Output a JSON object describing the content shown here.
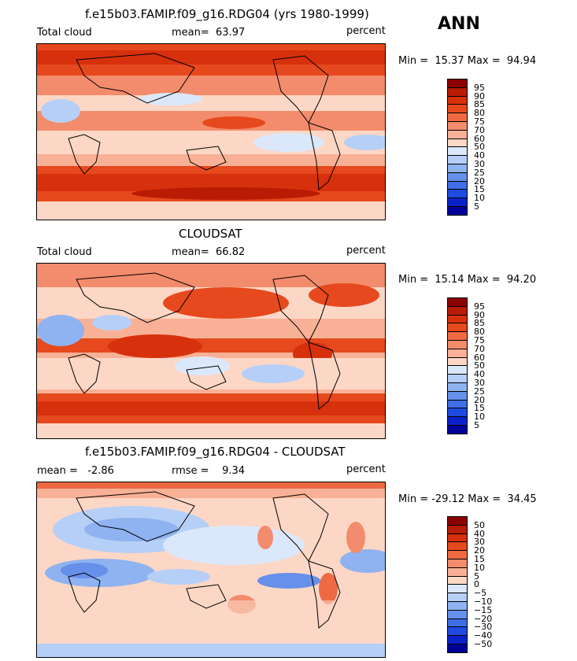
{
  "season": "ANN",
  "panels": [
    {
      "title": "f.e15b03.FAMIP.f09_g16.RDG04 (yrs 1980-1999)",
      "left_label": "Total cloud",
      "stat1": "mean=  63.97",
      "units": "percent",
      "minmax": "Min =  15.37 Max =  94.94"
    },
    {
      "title": "CLOUDSAT",
      "left_label": "Total cloud",
      "stat1": "mean=  66.82",
      "units": "percent",
      "minmax": "Min =  15.14 Max =  94.20"
    },
    {
      "title": "f.e15b03.FAMIP.f09_g16.RDG04 - CLOUDSAT",
      "left_label": "mean =   -2.86",
      "stat1": "rmse =    9.34",
      "units": "percent",
      "minmax": "Min = -29.12 Max =  34.45"
    }
  ],
  "colorbars": {
    "cloud": {
      "labels": [
        "95",
        "90",
        "85",
        "80",
        "75",
        "70",
        "60",
        "50",
        "40",
        "30",
        "25",
        "20",
        "15",
        "10",
        "5"
      ],
      "colors": [
        "#8b0000",
        "#b81c05",
        "#d7300c",
        "#e6491d",
        "#ef6a43",
        "#f38c6c",
        "#f8b196",
        "#fcd7c6",
        "#dbe8fb",
        "#b6cff7",
        "#8fb2f0",
        "#6690ea",
        "#3f6ee6",
        "#1f4be0",
        "#0a23c8",
        "#000099"
      ]
    },
    "diff": {
      "labels": [
        "50",
        "40",
        "30",
        "20",
        "15",
        "10",
        "5",
        "0",
        "−5",
        "−10",
        "−15",
        "−20",
        "−30",
        "−40",
        "−50"
      ],
      "colors": [
        "#8b0000",
        "#b81c05",
        "#d7300c",
        "#e6491d",
        "#ef6a43",
        "#f38c6c",
        "#f8b196",
        "#fcd7c6",
        "#dbe8fb",
        "#b6cff7",
        "#8fb2f0",
        "#6690ea",
        "#3f6ee6",
        "#1f4be0",
        "#0a23c8",
        "#000099"
      ]
    }
  },
  "chart_data": [
    {
      "type": "heatmap",
      "title": "f.e15b03.FAMIP.f09_g16.RDG04 (yrs 1980-1999)",
      "variable": "Total cloud",
      "units": "percent",
      "mean": 63.97,
      "min": 15.37,
      "max": 94.94,
      "contour_levels": [
        5,
        10,
        15,
        20,
        25,
        30,
        40,
        50,
        60,
        70,
        75,
        80,
        85,
        90,
        95
      ]
    },
    {
      "type": "heatmap",
      "title": "CLOUDSAT",
      "variable": "Total cloud",
      "units": "percent",
      "mean": 66.82,
      "min": 15.14,
      "max": 94.2,
      "contour_levels": [
        5,
        10,
        15,
        20,
        25,
        30,
        40,
        50,
        60,
        70,
        75,
        80,
        85,
        90,
        95
      ]
    },
    {
      "type": "heatmap",
      "title": "f.e15b03.FAMIP.f09_g16.RDG04 - CLOUDSAT",
      "units": "percent",
      "mean": -2.86,
      "rmse": 9.34,
      "min": -29.12,
      "max": 34.45,
      "contour_levels": [
        -50,
        -40,
        -30,
        -20,
        -15,
        -10,
        -5,
        0,
        5,
        10,
        15,
        20,
        30,
        40,
        50
      ]
    }
  ]
}
